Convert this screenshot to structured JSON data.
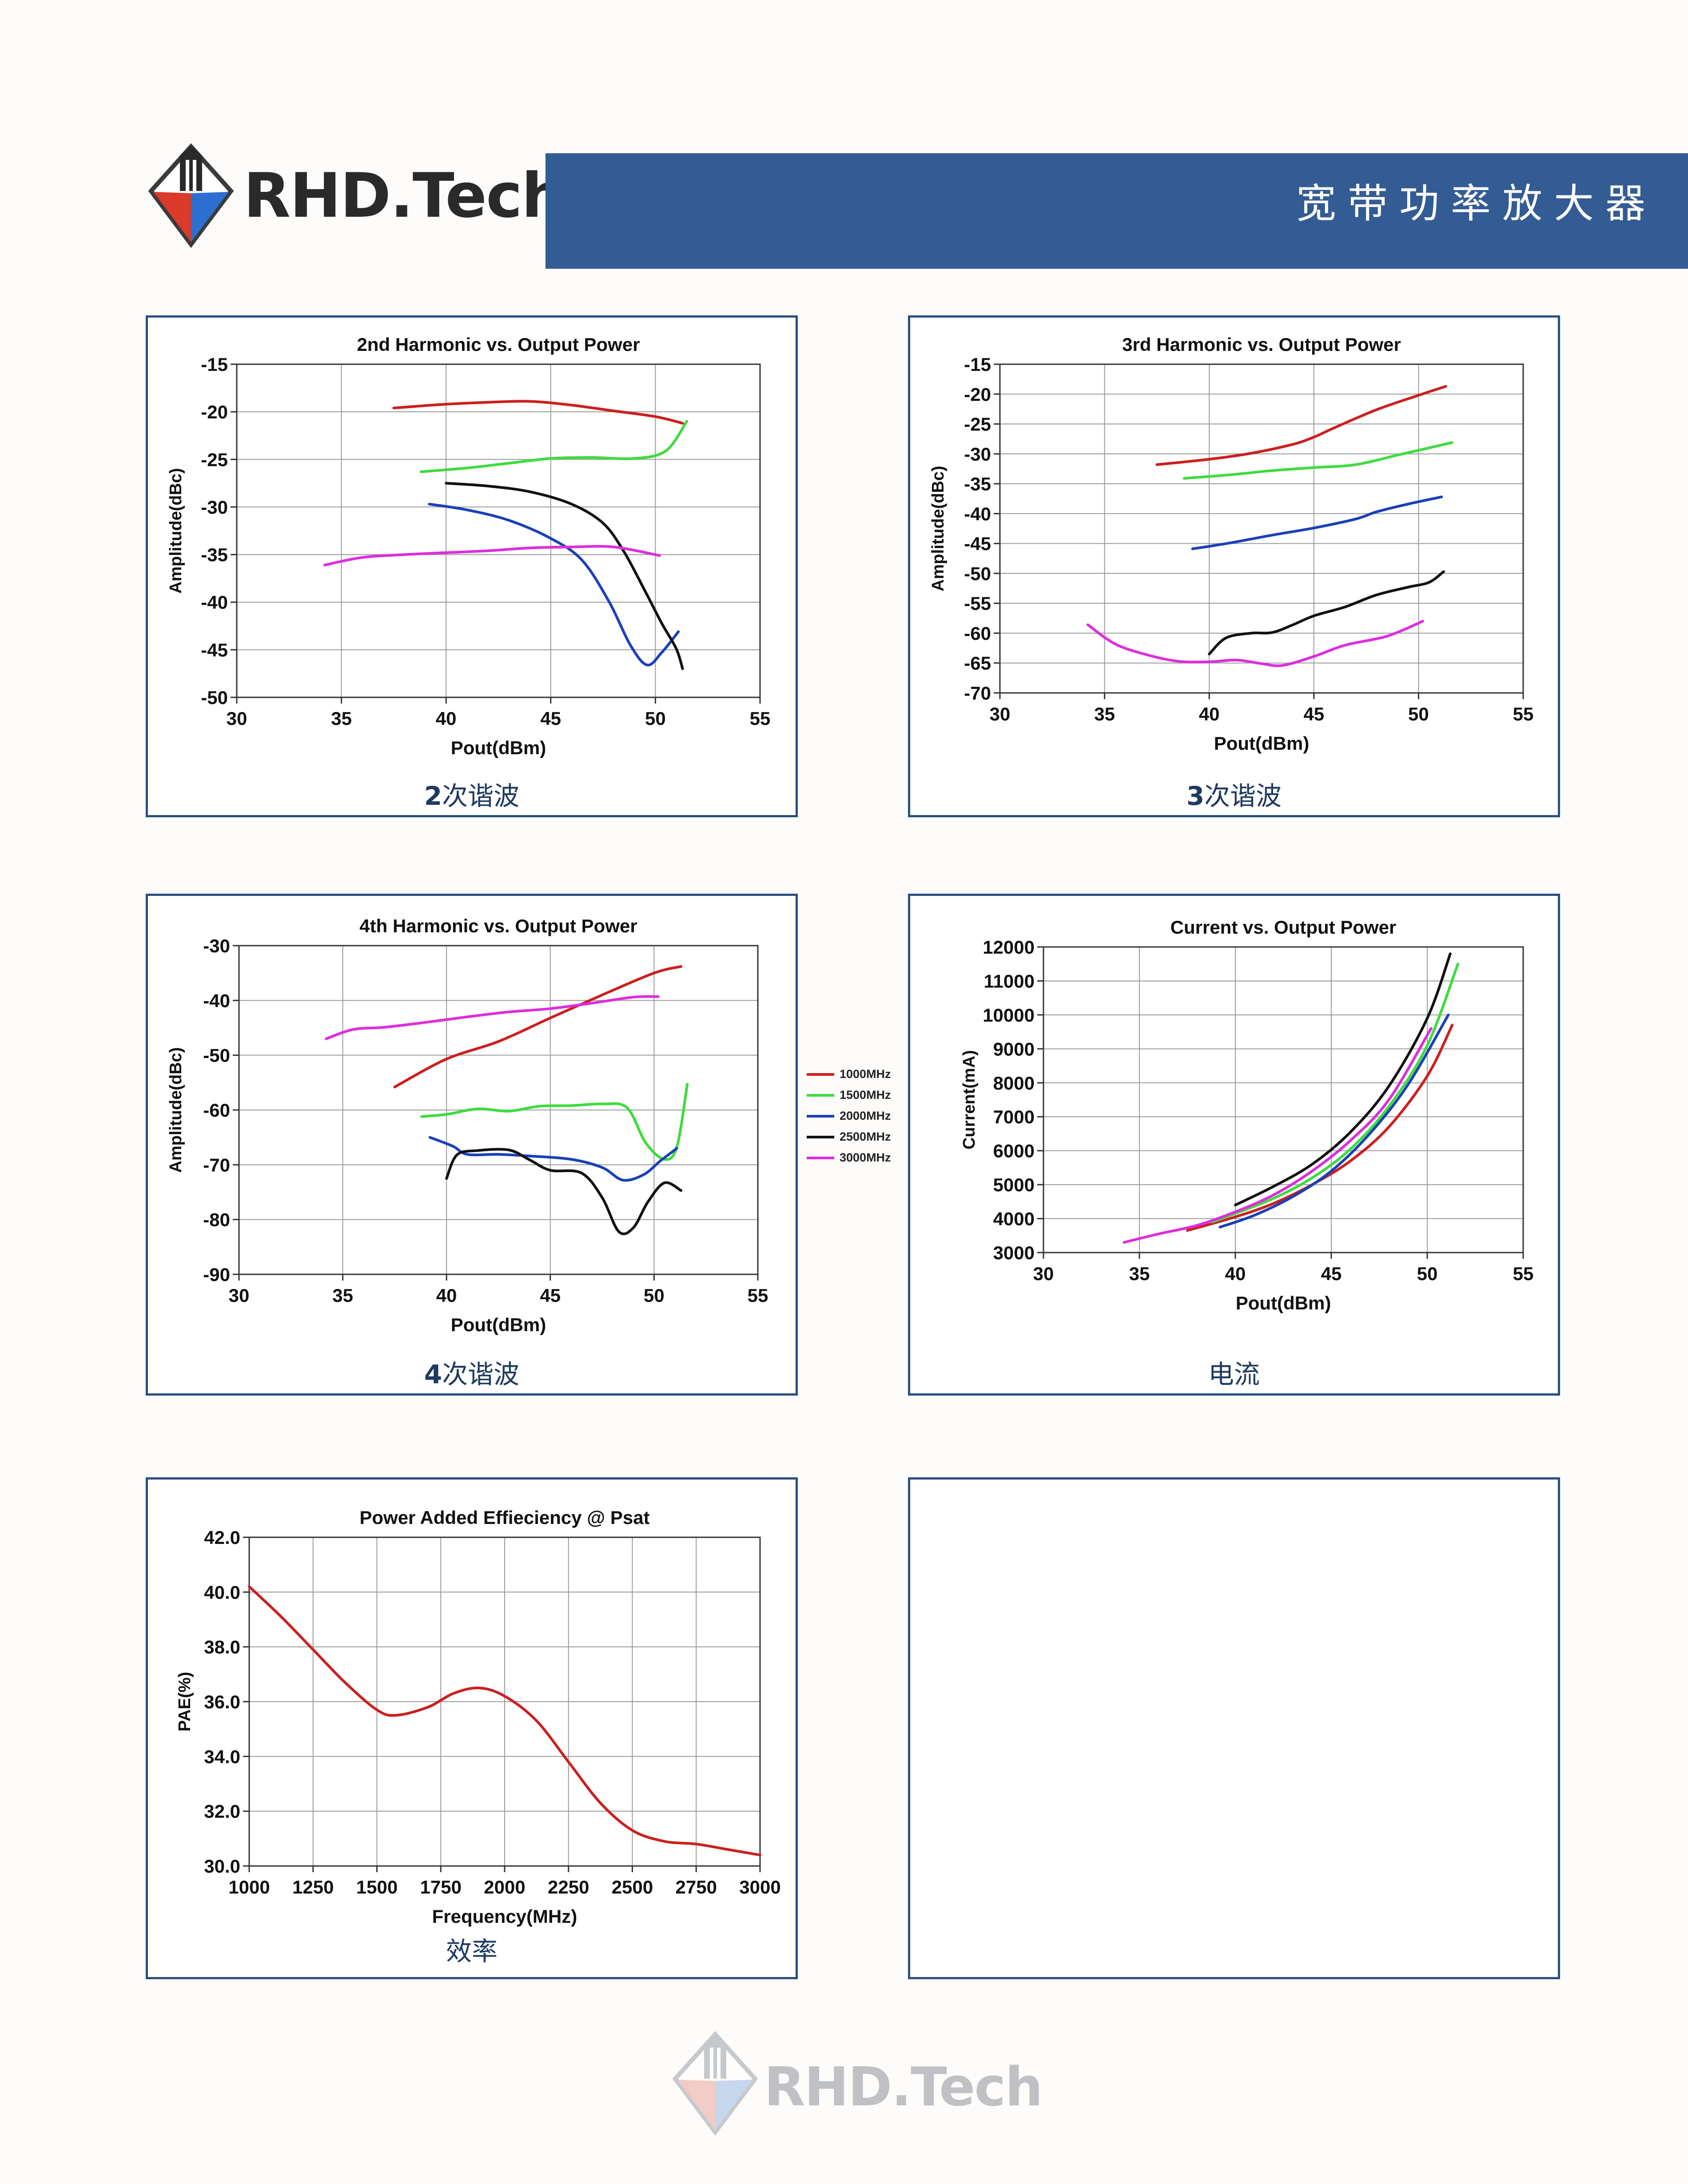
{
  "brand": {
    "name": "RHD.Tech"
  },
  "header": {
    "title": "宽带功率放大器"
  },
  "legend": {
    "items": [
      {
        "label": "1000MHz",
        "color": "#cc1f1f"
      },
      {
        "label": "1500MHz",
        "color": "#3fdb3f"
      },
      {
        "label": "2000MHz",
        "color": "#1a3fb8"
      },
      {
        "label": "2500MHz",
        "color": "#111111"
      },
      {
        "label": "3000MHz",
        "color": "#dd2ddd"
      }
    ]
  },
  "panels": {
    "p1": {
      "caption_num": "2",
      "caption_text": "次谐波"
    },
    "p2": {
      "caption_num": "3",
      "caption_text": "次谐波"
    },
    "p3": {
      "caption_num": "4",
      "caption_text": "次谐波"
    },
    "p4": {
      "caption_num": "",
      "caption_text": "电流"
    },
    "p5": {
      "caption_num": "",
      "caption_text": "效率"
    }
  },
  "chart_data": [
    {
      "id": "p1",
      "type": "line",
      "title": "2nd Harmonic vs. Output Power",
      "xlabel": "Pout(dBm)",
      "ylabel": "Amplitude(dBc)",
      "xlim": [
        30,
        55
      ],
      "ylim": [
        -50,
        -15
      ],
      "xticks": [
        30,
        35,
        40,
        45,
        50,
        55
      ],
      "yticks": [
        -50,
        -45,
        -40,
        -35,
        -30,
        -25,
        -20,
        -15
      ],
      "grid": true,
      "series": [
        {
          "name": "1000MHz",
          "color": "#cc1f1f",
          "x": [
            37.5,
            40,
            42,
            44,
            46,
            48,
            50,
            51.3
          ],
          "y": [
            -19.6,
            -19.2,
            -19.0,
            -18.9,
            -19.3,
            -19.9,
            -20.5,
            -21.2
          ]
        },
        {
          "name": "1500MHz",
          "color": "#3fdb3f",
          "x": [
            38.8,
            41,
            43,
            45,
            47,
            49,
            50.5,
            51.5
          ],
          "y": [
            -26.3,
            -25.9,
            -25.4,
            -24.9,
            -24.8,
            -24.9,
            -24.1,
            -21.0
          ]
        },
        {
          "name": "2000MHz",
          "color": "#1a3fb8",
          "x": [
            39.2,
            41,
            43,
            45,
            46.5,
            47.8,
            48.8,
            49.6,
            50.3,
            51.1
          ],
          "y": [
            -29.7,
            -30.3,
            -31.4,
            -33.3,
            -35.6,
            -40.0,
            -44.5,
            -46.6,
            -45.3,
            -43.1
          ]
        },
        {
          "name": "2500MHz",
          "color": "#111111",
          "x": [
            40,
            42,
            44,
            46,
            47.5,
            48.5,
            49.5,
            50.3,
            51,
            51.3
          ],
          "y": [
            -27.5,
            -27.8,
            -28.4,
            -29.7,
            -31.7,
            -34.7,
            -38.8,
            -42.2,
            -44.9,
            -47.0
          ]
        },
        {
          "name": "3000MHz",
          "color": "#dd2ddd",
          "x": [
            34.2,
            36,
            38,
            40,
            42,
            44,
            46,
            48,
            50.2
          ],
          "y": [
            -36.1,
            -35.3,
            -35.0,
            -34.8,
            -34.6,
            -34.3,
            -34.2,
            -34.2,
            -35.1
          ]
        }
      ]
    },
    {
      "id": "p2",
      "type": "line",
      "title": "3rd Harmonic  vs. Output Power",
      "xlabel": "Pout(dBm)",
      "ylabel": "Amplitude(dBc)",
      "xlim": [
        30,
        55
      ],
      "ylim": [
        -70,
        -15
      ],
      "xticks": [
        30,
        35,
        40,
        45,
        50,
        55
      ],
      "yticks": [
        -70,
        -65,
        -60,
        -55,
        -50,
        -45,
        -40,
        -35,
        -30,
        -25,
        -20,
        -15
      ],
      "grid": true,
      "series": [
        {
          "name": "1000MHz",
          "color": "#cc1f1f",
          "x": [
            37.5,
            40,
            42,
            44,
            45,
            46,
            48,
            50,
            51.3
          ],
          "y": [
            -31.8,
            -30.9,
            -29.9,
            -28.4,
            -27.2,
            -25.6,
            -22.6,
            -20.2,
            -18.7
          ]
        },
        {
          "name": "1500MHz",
          "color": "#3fdb3f",
          "x": [
            38.8,
            41,
            43,
            45,
            47,
            49,
            50.5,
            51.6
          ],
          "y": [
            -34.1,
            -33.5,
            -32.8,
            -32.3,
            -31.8,
            -30.2,
            -29.0,
            -28.1
          ]
        },
        {
          "name": "2000MHz",
          "color": "#1a3fb8",
          "x": [
            39.2,
            41,
            43,
            45,
            47,
            48,
            49.5,
            51.1
          ],
          "y": [
            -45.9,
            -44.9,
            -43.6,
            -42.4,
            -40.9,
            -39.7,
            -38.4,
            -37.2
          ]
        },
        {
          "name": "2500MHz",
          "color": "#111111",
          "x": [
            40,
            40.8,
            42,
            43,
            44,
            45,
            46.5,
            48,
            49.5,
            50.5,
            51.2
          ],
          "y": [
            -63.5,
            -60.8,
            -60.0,
            -59.9,
            -58.6,
            -57.1,
            -55.6,
            -53.6,
            -52.3,
            -51.5,
            -49.7
          ]
        },
        {
          "name": "3000MHz",
          "color": "#dd2ddd",
          "x": [
            34.2,
            35.5,
            37,
            38.5,
            40,
            41.3,
            42.5,
            43.5,
            45,
            46.5,
            48.5,
            50.2
          ],
          "y": [
            -58.6,
            -61.8,
            -63.6,
            -64.7,
            -64.8,
            -64.5,
            -65.1,
            -65.4,
            -63.9,
            -62.0,
            -60.5,
            -58.0
          ]
        }
      ]
    },
    {
      "id": "p3",
      "type": "line",
      "title": "4th Harmonic  vs. Output Power",
      "xlabel": "Pout(dBm)",
      "ylabel": "Amplitude(dBc)",
      "xlim": [
        30,
        55
      ],
      "ylim": [
        -90,
        -30
      ],
      "xticks": [
        30,
        35,
        40,
        45,
        50,
        55
      ],
      "yticks": [
        -90,
        -80,
        -70,
        -60,
        -50,
        -40,
        -30
      ],
      "grid": true,
      "series": [
        {
          "name": "1000MHz",
          "color": "#cc1f1f",
          "x": [
            37.5,
            40,
            42.5,
            45,
            47.5,
            50,
            51.3
          ],
          "y": [
            -55.8,
            -50.7,
            -47.5,
            -43.2,
            -39.0,
            -35.0,
            -33.8
          ]
        },
        {
          "name": "1500MHz",
          "color": "#3fdb3f",
          "x": [
            38.8,
            40,
            41.5,
            43,
            44.5,
            46,
            47.5,
            48.7,
            49.6,
            50.5,
            51.1,
            51.6
          ],
          "y": [
            -61.2,
            -60.8,
            -59.8,
            -60.2,
            -59.3,
            -59.2,
            -58.9,
            -59.6,
            -66.0,
            -69.0,
            -66.7,
            -55.3
          ]
        },
        {
          "name": "2000MHz",
          "color": "#1a3fb8",
          "x": [
            39.2,
            40.3,
            41,
            42.5,
            44,
            46,
            47.5,
            48.5,
            49.5,
            50.3,
            51.1
          ],
          "y": [
            -65.0,
            -66.6,
            -68.1,
            -68.1,
            -68.4,
            -69.0,
            -70.5,
            -72.8,
            -71.8,
            -69.3,
            -67.0
          ]
        },
        {
          "name": "2500MHz",
          "color": "#111111",
          "x": [
            40,
            40.5,
            41.5,
            43,
            44,
            45,
            46.5,
            47.5,
            48.3,
            49,
            49.7,
            50.5,
            51.3
          ],
          "y": [
            -72.5,
            -68.2,
            -67.4,
            -67.3,
            -69.1,
            -71.0,
            -71.5,
            -76.0,
            -82.2,
            -81.5,
            -76.8,
            -73.3,
            -74.7
          ]
        },
        {
          "name": "3000MHz",
          "color": "#dd2ddd",
          "x": [
            34.2,
            35.5,
            37,
            39,
            41,
            43,
            45,
            47,
            49,
            50.2
          ],
          "y": [
            -47.0,
            -45.3,
            -44.9,
            -44.0,
            -43.0,
            -42.1,
            -41.5,
            -40.5,
            -39.4,
            -39.3
          ]
        }
      ]
    },
    {
      "id": "p4",
      "type": "line",
      "title": "Current vs. Output Power",
      "xlabel": "Pout(dBm)",
      "ylabel": "Current(mA)",
      "xlim": [
        30,
        55
      ],
      "ylim": [
        3000,
        12000
      ],
      "xticks": [
        30,
        35,
        40,
        45,
        50,
        55
      ],
      "yticks": [
        3000,
        4000,
        5000,
        6000,
        7000,
        8000,
        9000,
        10000,
        11000,
        12000
      ],
      "grid": true,
      "series": [
        {
          "name": "1000MHz",
          "color": "#cc1f1f",
          "x": [
            37.5,
            40,
            42,
            44,
            46,
            48,
            50,
            51.3
          ],
          "y": [
            3650,
            4050,
            4450,
            5000,
            5700,
            6700,
            8200,
            9700
          ]
        },
        {
          "name": "1500MHz",
          "color": "#3fdb3f",
          "x": [
            38.8,
            40,
            42,
            44,
            46,
            48,
            50,
            51.6
          ],
          "y": [
            3900,
            4150,
            4600,
            5200,
            6050,
            7300,
            9100,
            11500
          ]
        },
        {
          "name": "2000MHz",
          "color": "#1a3fb8",
          "x": [
            39.2,
            41,
            43,
            45,
            47,
            49,
            51.1
          ],
          "y": [
            3750,
            4100,
            4650,
            5400,
            6500,
            7950,
            10000
          ]
        },
        {
          "name": "2500MHz",
          "color": "#111111",
          "x": [
            40,
            42,
            44,
            46,
            48,
            50,
            51.2
          ],
          "y": [
            4400,
            4950,
            5600,
            6550,
            7900,
            9900,
            11800
          ]
        },
        {
          "name": "3000MHz",
          "color": "#dd2ddd",
          "x": [
            34.2,
            36,
            38,
            40,
            42,
            44,
            46,
            48,
            50.2
          ],
          "y": [
            3300,
            3550,
            3800,
            4200,
            4700,
            5400,
            6300,
            7500,
            9600
          ]
        }
      ]
    },
    {
      "id": "p5",
      "type": "line",
      "title": "Power Added Effieciency @ Psat",
      "xlabel": "Frequency(MHz)",
      "ylabel": "PAE(%)",
      "xlim": [
        1000,
        3000
      ],
      "ylim": [
        30,
        42
      ],
      "xticks": [
        1000,
        1250,
        1500,
        1750,
        2000,
        2250,
        2500,
        2750,
        3000
      ],
      "yticks": [
        30,
        32,
        34,
        36,
        38,
        40,
        42
      ],
      "ytick_labels": [
        "30.0",
        "32.0",
        "34.0",
        "36.0",
        "38.0",
        "40.0",
        "42.0"
      ],
      "grid": true,
      "series": [
        {
          "name": "",
          "color": "#cc1f1f",
          "x": [
            1000,
            1125,
            1250,
            1375,
            1500,
            1575,
            1700,
            1800,
            1900,
            2000,
            2125,
            2250,
            2375,
            2500,
            2625,
            2750,
            2875,
            3000
          ],
          "y": [
            40.2,
            39.1,
            37.9,
            36.7,
            35.7,
            35.5,
            35.8,
            36.3,
            36.5,
            36.2,
            35.3,
            33.8,
            32.3,
            31.3,
            30.9,
            30.8,
            30.6,
            30.4
          ]
        }
      ]
    }
  ]
}
